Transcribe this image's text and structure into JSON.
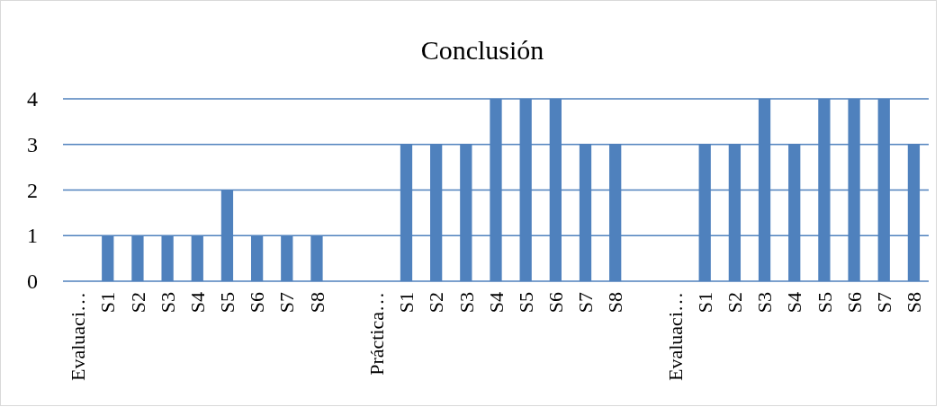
{
  "chart_data": {
    "type": "bar",
    "title": "Conclusión",
    "categories": [
      "Evaluaci…",
      "S1",
      "S2",
      "S3",
      "S4",
      "S5",
      "S6",
      "S7",
      "S8",
      null,
      "Práctica…",
      "S1",
      "S2",
      "S3",
      "S4",
      "S5",
      "S6",
      "S7",
      "S8",
      null,
      "Evaluaci…",
      "S1",
      "S2",
      "S3",
      "S4",
      "S5",
      "S6",
      "S7",
      "S8"
    ],
    "values": [
      null,
      1,
      1,
      1,
      1,
      2,
      1,
      1,
      1,
      null,
      null,
      3,
      3,
      3,
      4,
      4,
      4,
      3,
      3,
      null,
      null,
      3,
      3,
      4,
      3,
      4,
      4,
      4,
      3
    ],
    "color": "#4f81bd",
    "ylim": [
      0,
      4
    ],
    "yticks": [
      0,
      1,
      2,
      3,
      4
    ],
    "grid": "y"
  }
}
